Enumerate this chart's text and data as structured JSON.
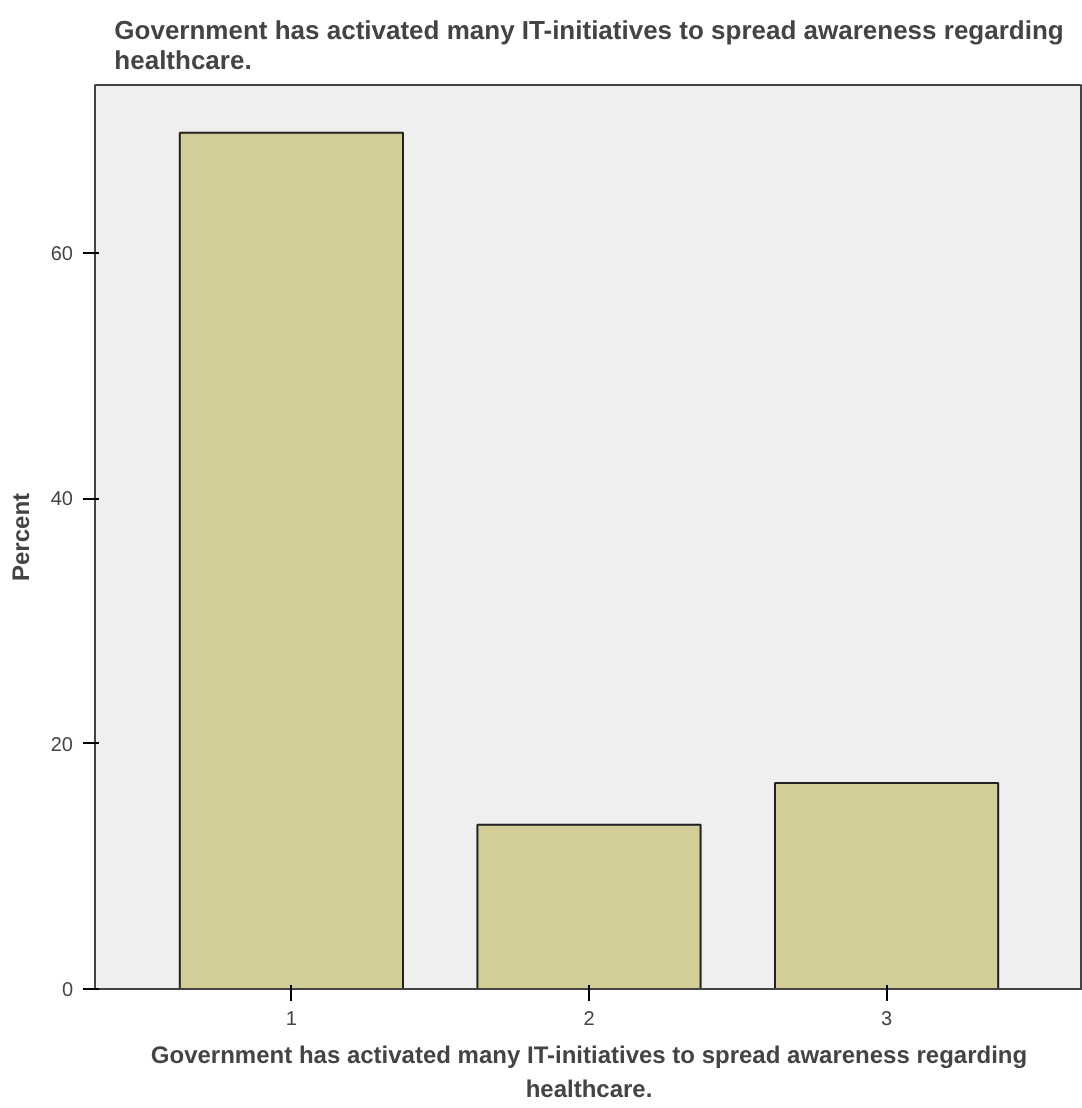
{
  "chart_data": {
    "type": "bar",
    "title": "Government has activated many IT-initiatives to spread awareness regarding\nhealthcare.",
    "xlabel": "Government has activated many IT-initiatives to spread awareness regarding\nhealthcare.",
    "ylabel": "Percent",
    "categories": [
      "1",
      "2",
      "3"
    ],
    "values": [
      69.8,
      13.4,
      16.8
    ],
    "color": "#d3ce97",
    "ylim": [
      0,
      73.7
    ],
    "yticks": [
      0,
      20,
      40,
      60
    ],
    "grid": false
  }
}
